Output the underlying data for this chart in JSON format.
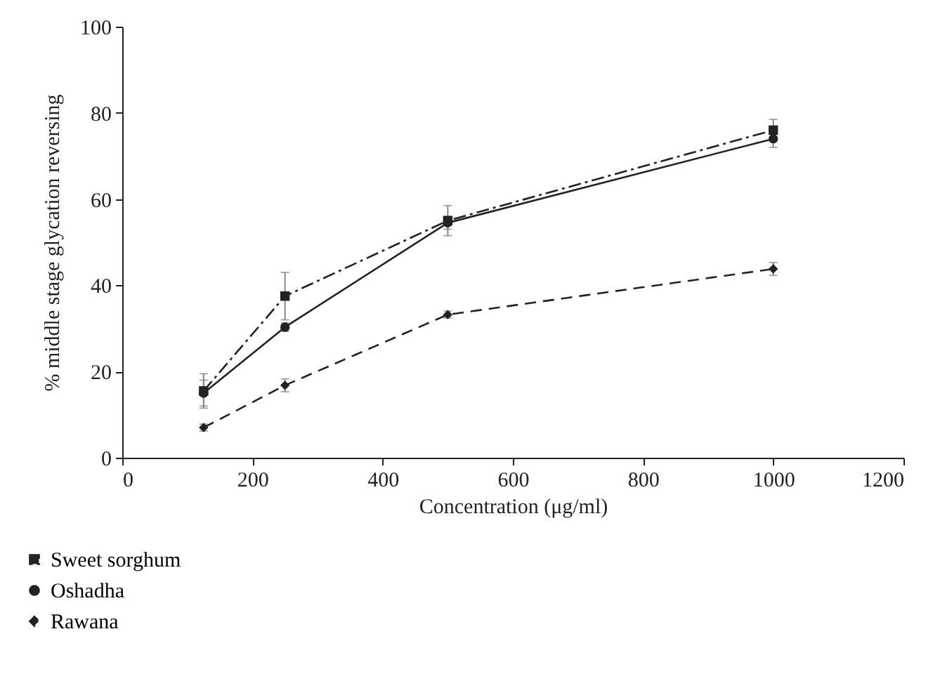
{
  "chart_data": {
    "type": "line",
    "xlabel": "Concentration (μg/ml)",
    "ylabel": "% middle stage glycation reversing",
    "x": [
      125,
      250,
      500,
      1000
    ],
    "series": [
      {
        "name": "Sweet sorghum",
        "color": "#222222",
        "marker": "square",
        "line_style": "dashdot",
        "values": [
          15.5,
          37.5,
          55,
          76
        ],
        "errors": [
          4,
          5.5,
          3.5,
          2.5
        ]
      },
      {
        "name": "Oshadha",
        "color": "#222222",
        "marker": "circle",
        "line_style": "solid",
        "values": [
          15,
          30.3,
          54.5,
          74
        ],
        "errors": [
          3,
          1,
          1.5,
          2
        ]
      },
      {
        "name": "Rawana",
        "color": "#222222",
        "marker": "diamond",
        "line_style": "dashed",
        "values": [
          7,
          16.8,
          33.2,
          43.8
        ],
        "errors": [
          0.8,
          1.5,
          0.8,
          1.5
        ]
      }
    ],
    "xlim": [
      0,
      1200
    ],
    "xticks": [
      0,
      200,
      400,
      600,
      800,
      1000,
      1200
    ],
    "ylim": [
      0,
      100
    ],
    "yticks": [
      0,
      20,
      40,
      60,
      80,
      100
    ],
    "grid": false,
    "legend": "bottom left"
  }
}
